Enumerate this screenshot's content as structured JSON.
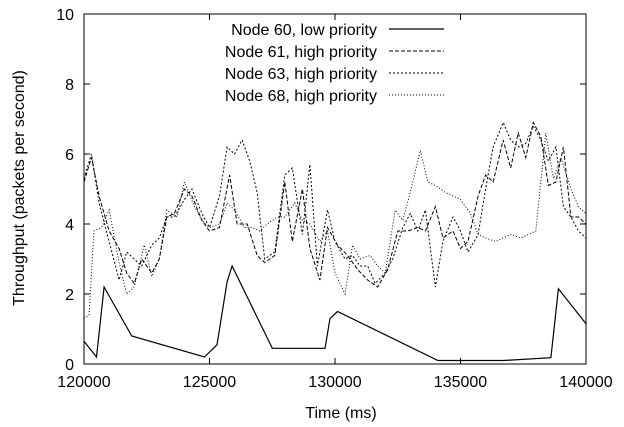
{
  "chart_data": {
    "type": "line",
    "title": "",
    "xlabel": "Time (ms)",
    "ylabel": "Throughput (packets per second)",
    "xlim": [
      120000,
      140000
    ],
    "ylim": [
      0,
      10
    ],
    "xticks": [
      120000,
      125000,
      130000,
      135000,
      140000
    ],
    "yticks": [
      0,
      2,
      4,
      6,
      8,
      10
    ],
    "grid": false,
    "legend_position": "top-right",
    "series": [
      {
        "name": "Node 60, low priority",
        "style": "solid",
        "x": [
          120000,
          120500,
          120800,
          121900,
          124800,
          125300,
          125700,
          125900,
          127500,
          129600,
          129800,
          130100,
          134100,
          136700,
          138600,
          138900,
          140000
        ],
        "y": [
          0.65,
          0.2,
          2.2,
          0.8,
          0.2,
          0.55,
          2.35,
          2.8,
          0.45,
          0.45,
          1.3,
          1.5,
          0.1,
          0.1,
          0.18,
          2.15,
          1.15
        ]
      },
      {
        "name": "Node 61, high priority",
        "style": "dashed",
        "x": [
          120000,
          120300,
          120600,
          121000,
          121400,
          121700,
          122000,
          122300,
          122700,
          123000,
          123300,
          123600,
          124000,
          124300,
          124700,
          125000,
          125400,
          125800,
          126100,
          126500,
          126900,
          127200,
          127600,
          128000,
          128300,
          128700,
          129000,
          129400,
          129700,
          130100,
          130500,
          130900,
          131300,
          131700,
          132100,
          132500,
          132900,
          133300,
          133600,
          134000,
          134300,
          134700,
          135000,
          135300,
          135700,
          136000,
          136300,
          136700,
          137000,
          137300,
          137600,
          137900,
          138200,
          138500,
          138800,
          139100,
          139400,
          139700,
          140000
        ],
        "y": [
          5.2,
          5.9,
          4.8,
          3.8,
          3.3,
          2.6,
          2.3,
          3.0,
          2.6,
          3.0,
          4.2,
          4.3,
          5.0,
          4.8,
          4.1,
          3.8,
          3.9,
          5.4,
          4.0,
          4.0,
          3.1,
          2.9,
          3.1,
          5.2,
          3.5,
          5.0,
          3.3,
          2.4,
          3.9,
          3.4,
          3.1,
          2.7,
          2.4,
          2.2,
          2.7,
          3.8,
          3.8,
          3.9,
          3.8,
          4.5,
          3.6,
          3.8,
          3.3,
          3.5,
          4.8,
          5.4,
          5.2,
          6.4,
          5.6,
          6.6,
          5.9,
          6.9,
          6.5,
          5.1,
          5.2,
          6.2,
          4.2,
          4.2,
          4.0
        ]
      },
      {
        "name": "Node 63, high priority",
        "style": "dotted",
        "x": [
          120000,
          120300,
          120600,
          121000,
          121400,
          121700,
          122000,
          122300,
          122700,
          123000,
          123300,
          123600,
          124000,
          124300,
          124700,
          125000,
          125400,
          125700,
          126000,
          126300,
          126600,
          126900,
          127200,
          127600,
          128000,
          128300,
          128700,
          129000,
          129300,
          129700,
          130000,
          130400,
          130700,
          131000,
          131300,
          131600,
          132000,
          132300,
          132700,
          133000,
          133300,
          133600,
          134000,
          134300,
          134700,
          135000,
          135300,
          135700,
          136000,
          136300,
          136700,
          137000,
          137300,
          137600,
          137900,
          138200,
          138500,
          138800,
          139100,
          139400,
          139700,
          140000
        ],
        "y": [
          5.3,
          6.0,
          4.6,
          3.5,
          2.4,
          3.2,
          3.0,
          2.8,
          3.4,
          3.6,
          4.2,
          4.2,
          4.7,
          5.0,
          4.3,
          3.9,
          4.8,
          6.2,
          6.0,
          6.4,
          5.8,
          4.9,
          3.0,
          3.2,
          5.4,
          5.6,
          3.7,
          5.7,
          2.8,
          4.4,
          3.5,
          3.0,
          3.1,
          2.8,
          2.8,
          2.3,
          2.6,
          3.0,
          3.9,
          4.3,
          3.8,
          4.4,
          2.2,
          3.5,
          4.2,
          3.8,
          3.2,
          3.7,
          5.0,
          6.2,
          6.9,
          6.4,
          6.2,
          6.3,
          6.8,
          6.4,
          5.8,
          6.2,
          4.5,
          4.2,
          3.8,
          3.6
        ]
      },
      {
        "name": "Node 68, high priority",
        "style": "dotted-fine",
        "x": [
          120000,
          120200,
          120400,
          120700,
          121000,
          121400,
          121700,
          122000,
          122400,
          122700,
          123000,
          123300,
          123700,
          124000,
          124400,
          124700,
          125000,
          125400,
          125700,
          126000,
          126400,
          126700,
          127000,
          127300,
          127700,
          128000,
          128400,
          128700,
          129000,
          129400,
          129700,
          130000,
          130400,
          130700,
          131000,
          131400,
          131700,
          132000,
          132400,
          132700,
          133000,
          133400,
          133700,
          134000,
          134400,
          134700,
          135000,
          135400,
          135700,
          136000,
          136400,
          136700,
          137000,
          137400,
          137700,
          138000,
          138400,
          138700,
          139000,
          139400,
          139700,
          140000
        ],
        "y": [
          1.3,
          1.4,
          3.8,
          3.9,
          4.4,
          2.9,
          2.0,
          2.2,
          3.4,
          2.5,
          3.0,
          4.4,
          4.2,
          5.2,
          4.5,
          4.1,
          3.9,
          4.0,
          4.6,
          4.4,
          3.9,
          3.9,
          3.8,
          4.0,
          4.2,
          4.2,
          4.6,
          4.1,
          4.0,
          3.5,
          3.8,
          2.6,
          2.0,
          3.4,
          3.0,
          3.1,
          2.8,
          2.6,
          4.4,
          4.1,
          4.9,
          6.1,
          5.2,
          5.1,
          4.9,
          4.8,
          4.7,
          4.3,
          3.7,
          3.6,
          3.5,
          3.6,
          3.7,
          3.6,
          3.7,
          3.8,
          6.6,
          5.3,
          5.9,
          5.0,
          4.5,
          4.3
        ]
      }
    ]
  }
}
